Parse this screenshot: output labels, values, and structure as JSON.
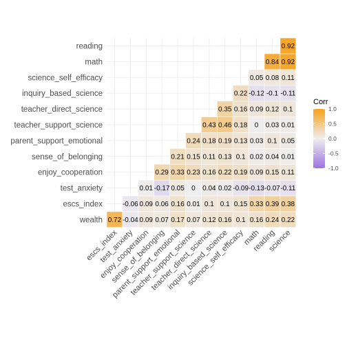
{
  "chart_data": {
    "type": "heatmap",
    "variables": [
      "escs_index",
      "test_anxiety",
      "enjoy_cooperation",
      "sense_of_belonging",
      "parent_support_emotional",
      "teacher_support_science",
      "teacher_direct_science",
      "inquiry_based_science",
      "science_self_efficacy",
      "math",
      "reading",
      "science"
    ],
    "y_order": [
      "wealth",
      "escs_index",
      "test_anxiety",
      "enjoy_cooperation",
      "sense_of_belonging",
      "parent_support_emotional",
      "teacher_support_science",
      "teacher_direct_science",
      "inquiry_based_science",
      "science_self_efficacy",
      "math",
      "reading"
    ],
    "values": [
      [
        0.72,
        -0.04,
        0.09,
        0.07,
        0.17,
        0.07,
        0.12,
        0.16,
        0.1,
        0.16,
        0.24,
        0.22
      ],
      [
        null,
        -0.06,
        0.09,
        0.06,
        0.16,
        0.01,
        0.1,
        0.1,
        0.15,
        0.33,
        0.39,
        0.38
      ],
      [
        null,
        null,
        0.01,
        -0.17,
        0.05,
        0,
        0.04,
        0.02,
        -0.09,
        -0.13,
        -0.07,
        -0.11
      ],
      [
        null,
        null,
        null,
        0.29,
        0.33,
        0.23,
        0.16,
        0.22,
        0.19,
        0.09,
        0.15,
        0.11
      ],
      [
        null,
        null,
        null,
        null,
        0.21,
        0.15,
        0.11,
        0.13,
        0.1,
        0.02,
        0.04,
        0.01
      ],
      [
        null,
        null,
        null,
        null,
        null,
        0.24,
        0.18,
        0.19,
        0.13,
        0.03,
        0.1,
        0.05
      ],
      [
        null,
        null,
        null,
        null,
        null,
        null,
        0.43,
        0.46,
        0.18,
        0,
        0.03,
        0.01
      ],
      [
        null,
        null,
        null,
        null,
        null,
        null,
        null,
        0.35,
        0.16,
        0.09,
        0.12,
        0.1
      ],
      [
        null,
        null,
        null,
        null,
        null,
        null,
        null,
        null,
        0.22,
        -0.12,
        -0.1,
        -0.11
      ],
      [
        null,
        null,
        null,
        null,
        null,
        null,
        null,
        null,
        null,
        0.05,
        0.08,
        0.11
      ],
      [
        null,
        null,
        null,
        null,
        null,
        null,
        null,
        null,
        null,
        null,
        0.84,
        0.92
      ],
      [
        null,
        null,
        null,
        null,
        null,
        null,
        null,
        null,
        null,
        null,
        null,
        0.92
      ]
    ],
    "value_labels": [
      [
        "0.72",
        "-0.04",
        "0.09",
        "0.07",
        "0.17",
        "0.07",
        "0.12",
        "0.16",
        "0.1",
        "0.16",
        "0.24",
        "0.22"
      ],
      [
        null,
        "-0.06",
        "0.09",
        "0.06",
        "0.16",
        "0.01",
        "0.1",
        "0.1",
        "0.15",
        "0.33",
        "0.39",
        "0.38"
      ],
      [
        null,
        null,
        "0.01",
        "-0.17",
        "0.05",
        "0",
        "0.04",
        "0.02",
        "-0.09",
        "-0.13",
        "-0.07",
        "-0.11"
      ],
      [
        null,
        null,
        null,
        "0.29",
        "0.33",
        "0.23",
        "0.16",
        "0.22",
        "0.19",
        "0.09",
        "0.15",
        "0.11"
      ],
      [
        null,
        null,
        null,
        null,
        "0.21",
        "0.15",
        "0.11",
        "0.13",
        "0.1",
        "0.02",
        "0.04",
        "0.01"
      ],
      [
        null,
        null,
        null,
        null,
        null,
        "0.24",
        "0.18",
        "0.19",
        "0.13",
        "0.03",
        "0.1",
        "0.05"
      ],
      [
        null,
        null,
        null,
        null,
        null,
        null,
        "0.43",
        "0.46",
        "0.18",
        "0",
        "0.03",
        "0.01"
      ],
      [
        null,
        null,
        null,
        null,
        null,
        null,
        null,
        "0.35",
        "0.16",
        "0.09",
        "0.12",
        "0.1"
      ],
      [
        null,
        null,
        null,
        null,
        null,
        null,
        null,
        null,
        "0.22",
        "-0.12",
        "-0.1",
        "-0.11"
      ],
      [
        null,
        null,
        null,
        null,
        null,
        null,
        null,
        null,
        null,
        "0.05",
        "0.08",
        "0.11"
      ],
      [
        null,
        null,
        null,
        null,
        null,
        null,
        null,
        null,
        null,
        null,
        "0.84",
        "0.92"
      ],
      [
        null,
        null,
        null,
        null,
        null,
        null,
        null,
        null,
        null,
        null,
        null,
        "0.92"
      ]
    ],
    "legend": {
      "title": "Corr",
      "ticks": [
        "1.0",
        "0.5",
        "0.0",
        "-0.5",
        "-1.0"
      ],
      "tick_values": [
        1,
        0.5,
        0,
        -0.5,
        -1
      ],
      "placement": "right"
    },
    "colors": {
      "low": "#9b72e0",
      "mid": "#eeeeee",
      "high": "#f7a11a",
      "grid": "#ebebeb"
    },
    "range": [
      -1,
      1
    ],
    "grid": true,
    "title": "",
    "xlabel": "",
    "ylabel": ""
  }
}
